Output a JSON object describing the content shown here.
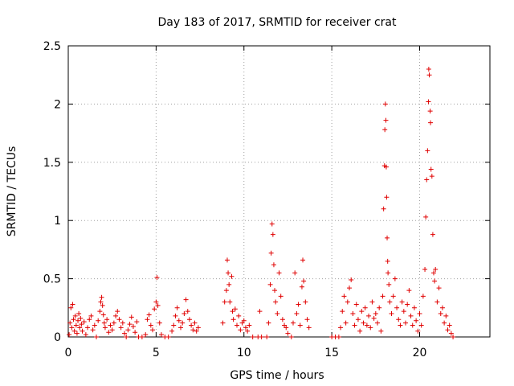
{
  "chart_data": {
    "type": "scatter",
    "title": "Day 183 of 2017, SRMTID for receiver crat",
    "xlabel": "GPS time / hours",
    "ylabel": "SRMTID / TECUs",
    "xlim": [
      0,
      24
    ],
    "ylim": [
      0,
      2.5
    ],
    "x_ticks": [
      0,
      5,
      10,
      15,
      20
    ],
    "x_tick_labels": [
      "0",
      "5",
      "10",
      "15",
      "20"
    ],
    "y_ticks": [
      0,
      0.5,
      1,
      1.5,
      2,
      2.5
    ],
    "y_tick_labels": [
      "0",
      "0.5",
      "1",
      "1.5",
      "2",
      "2.5"
    ],
    "grid": true,
    "marker": "+",
    "colors": {
      "series": "#e00000",
      "grid": "#a0a0a0",
      "axis": "#000000"
    },
    "series": [
      {
        "name": "SRMTID",
        "points": [
          [
            0.05,
            0.02
          ],
          [
            0.1,
            0.12
          ],
          [
            0.15,
            0.25
          ],
          [
            0.2,
            0.08
          ],
          [
            0.25,
            0.28
          ],
          [
            0.3,
            0.15
          ],
          [
            0.35,
            0.05
          ],
          [
            0.4,
            0.18
          ],
          [
            0.45,
            0.1
          ],
          [
            0.5,
            0.03
          ],
          [
            0.55,
            0.14
          ],
          [
            0.6,
            0.2
          ],
          [
            0.65,
            0.08
          ],
          [
            0.7,
            0.16
          ],
          [
            0.75,
            0.11
          ],
          [
            0.8,
            0.05
          ],
          [
            0.9,
            0.13
          ],
          [
            1.0,
            0.02
          ],
          [
            1.1,
            0.08
          ],
          [
            1.2,
            0.15
          ],
          [
            1.3,
            0.18
          ],
          [
            1.4,
            0.06
          ],
          [
            1.5,
            0.1
          ],
          [
            1.6,
            0.0
          ],
          [
            1.7,
            0.14
          ],
          [
            1.8,
            0.22
          ],
          [
            1.85,
            0.3
          ],
          [
            1.9,
            0.34
          ],
          [
            1.95,
            0.27
          ],
          [
            2.0,
            0.19
          ],
          [
            2.05,
            0.12
          ],
          [
            2.1,
            0.08
          ],
          [
            2.2,
            0.15
          ],
          [
            2.3,
            0.04
          ],
          [
            2.4,
            0.1
          ],
          [
            2.5,
            0.06
          ],
          [
            2.6,
            0.12
          ],
          [
            2.7,
            0.18
          ],
          [
            2.8,
            0.22
          ],
          [
            2.9,
            0.15
          ],
          [
            3.0,
            0.08
          ],
          [
            3.1,
            0.12
          ],
          [
            3.2,
            0.03
          ],
          [
            3.3,
            0.0
          ],
          [
            3.4,
            0.06
          ],
          [
            3.5,
            0.11
          ],
          [
            3.6,
            0.17
          ],
          [
            3.7,
            0.09
          ],
          [
            3.8,
            0.04
          ],
          [
            3.9,
            0.13
          ],
          [
            4.0,
            0.0
          ],
          [
            4.2,
            0.0
          ],
          [
            4.4,
            0.02
          ],
          [
            4.5,
            0.15
          ],
          [
            4.6,
            0.19
          ],
          [
            4.7,
            0.1
          ],
          [
            4.8,
            0.06
          ],
          [
            4.9,
            0.24
          ],
          [
            5.0,
            0.3
          ],
          [
            5.05,
            0.51
          ],
          [
            5.1,
            0.27
          ],
          [
            5.2,
            0.12
          ],
          [
            5.3,
            0.02
          ],
          [
            5.5,
            0.0
          ],
          [
            5.7,
            0.0
          ],
          [
            5.9,
            0.05
          ],
          [
            6.0,
            0.1
          ],
          [
            6.1,
            0.18
          ],
          [
            6.2,
            0.25
          ],
          [
            6.3,
            0.14
          ],
          [
            6.4,
            0.08
          ],
          [
            6.5,
            0.12
          ],
          [
            6.6,
            0.2
          ],
          [
            6.7,
            0.32
          ],
          [
            6.8,
            0.22
          ],
          [
            6.9,
            0.15
          ],
          [
            7.0,
            0.1
          ],
          [
            7.1,
            0.06
          ],
          [
            7.2,
            0.12
          ],
          [
            7.3,
            0.05
          ],
          [
            7.4,
            0.08
          ],
          [
            8.8,
            0.12
          ],
          [
            8.9,
            0.3
          ],
          [
            9.0,
            0.4
          ],
          [
            9.05,
            0.66
          ],
          [
            9.1,
            0.55
          ],
          [
            9.15,
            0.45
          ],
          [
            9.2,
            0.3
          ],
          [
            9.3,
            0.52
          ],
          [
            9.35,
            0.22
          ],
          [
            9.4,
            0.15
          ],
          [
            9.5,
            0.24
          ],
          [
            9.6,
            0.1
          ],
          [
            9.7,
            0.18
          ],
          [
            9.8,
            0.06
          ],
          [
            9.9,
            0.12
          ],
          [
            10.0,
            0.14
          ],
          [
            10.1,
            0.08
          ],
          [
            10.2,
            0.05
          ],
          [
            10.3,
            0.1
          ],
          [
            10.5,
            0.0
          ],
          [
            10.8,
            0.0
          ],
          [
            10.9,
            0.22
          ],
          [
            11.0,
            0.0
          ],
          [
            11.3,
            0.0
          ],
          [
            11.4,
            0.12
          ],
          [
            11.5,
            0.45
          ],
          [
            11.55,
            0.72
          ],
          [
            11.6,
            0.97
          ],
          [
            11.65,
            0.88
          ],
          [
            11.7,
            0.62
          ],
          [
            11.75,
            0.4
          ],
          [
            11.8,
            0.3
          ],
          [
            11.9,
            0.2
          ],
          [
            12.0,
            0.55
          ],
          [
            12.1,
            0.35
          ],
          [
            12.2,
            0.15
          ],
          [
            12.3,
            0.1
          ],
          [
            12.4,
            0.08
          ],
          [
            12.5,
            0.03
          ],
          [
            12.7,
            0.0
          ],
          [
            12.8,
            0.12
          ],
          [
            12.9,
            0.55
          ],
          [
            13.0,
            0.2
          ],
          [
            13.1,
            0.28
          ],
          [
            13.2,
            0.1
          ],
          [
            13.3,
            0.43
          ],
          [
            13.35,
            0.66
          ],
          [
            13.4,
            0.48
          ],
          [
            13.5,
            0.3
          ],
          [
            13.6,
            0.15
          ],
          [
            13.7,
            0.08
          ],
          [
            15.0,
            0.0
          ],
          [
            15.2,
            0.0
          ],
          [
            15.4,
            0.0
          ],
          [
            15.5,
            0.08
          ],
          [
            15.6,
            0.22
          ],
          [
            15.7,
            0.35
          ],
          [
            15.8,
            0.12
          ],
          [
            15.9,
            0.3
          ],
          [
            16.0,
            0.42
          ],
          [
            16.1,
            0.49
          ],
          [
            16.2,
            0.2
          ],
          [
            16.3,
            0.1
          ],
          [
            16.4,
            0.28
          ],
          [
            16.5,
            0.15
          ],
          [
            16.6,
            0.05
          ],
          [
            16.7,
            0.22
          ],
          [
            16.8,
            0.12
          ],
          [
            16.9,
            0.25
          ],
          [
            17.0,
            0.1
          ],
          [
            17.1,
            0.18
          ],
          [
            17.2,
            0.08
          ],
          [
            17.3,
            0.3
          ],
          [
            17.4,
            0.16
          ],
          [
            17.5,
            0.2
          ],
          [
            17.6,
            0.12
          ],
          [
            17.7,
            0.25
          ],
          [
            17.8,
            0.05
          ],
          [
            17.9,
            0.35
          ],
          [
            17.95,
            1.1
          ],
          [
            18.0,
            1.47
          ],
          [
            18.02,
            1.78
          ],
          [
            18.05,
            2.0
          ],
          [
            18.08,
            1.86
          ],
          [
            18.1,
            1.46
          ],
          [
            18.12,
            1.2
          ],
          [
            18.15,
            0.85
          ],
          [
            18.18,
            0.65
          ],
          [
            18.2,
            0.55
          ],
          [
            18.25,
            0.45
          ],
          [
            18.3,
            0.3
          ],
          [
            18.4,
            0.2
          ],
          [
            18.5,
            0.35
          ],
          [
            18.6,
            0.5
          ],
          [
            18.7,
            0.25
          ],
          [
            18.8,
            0.15
          ],
          [
            18.9,
            0.1
          ],
          [
            19.0,
            0.3
          ],
          [
            19.1,
            0.22
          ],
          [
            19.2,
            0.12
          ],
          [
            19.3,
            0.28
          ],
          [
            19.4,
            0.4
          ],
          [
            19.5,
            0.18
          ],
          [
            19.6,
            0.1
          ],
          [
            19.7,
            0.25
          ],
          [
            19.8,
            0.14
          ],
          [
            19.9,
            0.05
          ],
          [
            20.0,
            0.2
          ],
          [
            20.1,
            0.1
          ],
          [
            20.2,
            0.35
          ],
          [
            20.3,
            0.58
          ],
          [
            20.35,
            1.03
          ],
          [
            20.4,
            1.35
          ],
          [
            20.45,
            1.6
          ],
          [
            20.5,
            2.02
          ],
          [
            20.52,
            2.3
          ],
          [
            20.55,
            2.25
          ],
          [
            20.6,
            1.94
          ],
          [
            20.62,
            1.84
          ],
          [
            20.65,
            1.44
          ],
          [
            20.7,
            1.38
          ],
          [
            20.75,
            0.88
          ],
          [
            20.8,
            0.55
          ],
          [
            20.85,
            0.48
          ],
          [
            20.9,
            0.58
          ],
          [
            21.0,
            0.3
          ],
          [
            21.1,
            0.42
          ],
          [
            21.2,
            0.2
          ],
          [
            21.3,
            0.25
          ],
          [
            21.4,
            0.12
          ],
          [
            21.5,
            0.18
          ],
          [
            21.6,
            0.06
          ],
          [
            21.7,
            0.1
          ],
          [
            21.8,
            0.03
          ],
          [
            21.9,
            0.0
          ]
        ]
      }
    ]
  }
}
